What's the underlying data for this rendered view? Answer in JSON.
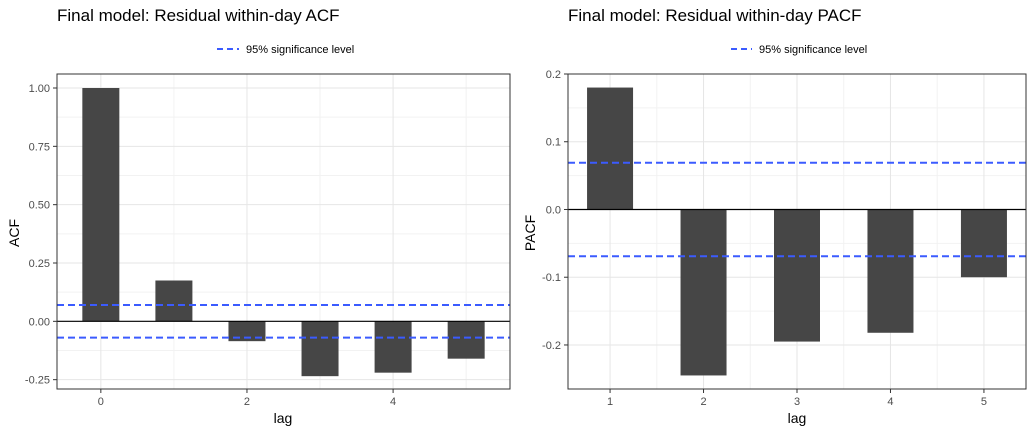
{
  "colors": {
    "bar": "#464646",
    "significance_line": "#3b5bff",
    "zero_line": "#000000",
    "panel_border": "#333333",
    "grid_major": "#e6e6e6",
    "grid_minor": "#f2f2f2"
  },
  "chart_data": [
    {
      "type": "bar",
      "title": "Final model: Residual within-day ACF",
      "xlabel": "lag",
      "ylabel": "ACF",
      "legend": {
        "label": "95% significance level",
        "placement": "top-center"
      },
      "grid": true,
      "x": [
        0,
        1,
        2,
        3,
        4,
        5
      ],
      "values": [
        1.0,
        0.175,
        -0.085,
        -0.235,
        -0.22,
        -0.16
      ],
      "significance": [
        0.07,
        -0.07
      ],
      "xlim": [
        -0.6,
        5.6
      ],
      "ylim": [
        -0.29,
        1.06
      ],
      "xticks": [
        0,
        2,
        4
      ],
      "xtick_labels": [
        "0",
        "2",
        "4"
      ],
      "yticks": [
        -0.25,
        0,
        0.25,
        0.5,
        0.75,
        1.0
      ],
      "ytick_labels": [
        "-0.25",
        "0.00",
        "0.25",
        "0.50",
        "0.75",
        "1.00"
      ]
    },
    {
      "type": "bar",
      "title": "Final model: Residual within-day PACF",
      "xlabel": "lag",
      "ylabel": "PACF",
      "legend": {
        "label": "95% significance level",
        "placement": "top-center"
      },
      "grid": true,
      "x": [
        1,
        2,
        3,
        4,
        5
      ],
      "values": [
        0.18,
        -0.245,
        -0.195,
        -0.182,
        -0.1
      ],
      "significance": [
        0.069,
        -0.069
      ],
      "xlim": [
        0.55,
        5.45
      ],
      "ylim": [
        -0.265,
        0.2
      ],
      "xticks": [
        1,
        2,
        3,
        4,
        5
      ],
      "xtick_labels": [
        "1",
        "2",
        "3",
        "4",
        "5"
      ],
      "yticks": [
        -0.2,
        -0.1,
        0,
        0.1,
        0.2
      ],
      "ytick_labels": [
        "-0.2",
        "-0.1",
        "0.0",
        "0.1",
        "0.2"
      ]
    }
  ]
}
